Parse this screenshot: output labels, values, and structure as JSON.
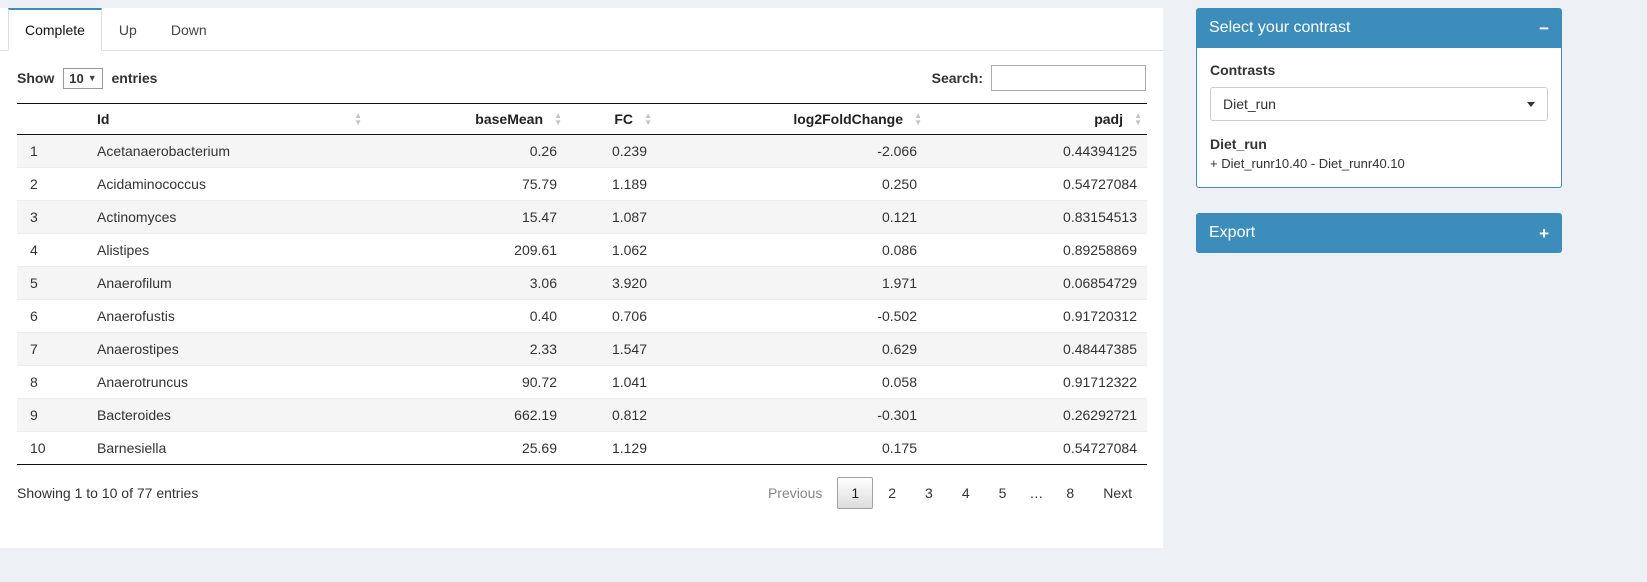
{
  "colors": {
    "primary": "#3c8dbc"
  },
  "tabs": [
    {
      "label": "Complete",
      "active": true
    },
    {
      "label": "Up",
      "active": false
    },
    {
      "label": "Down",
      "active": false
    }
  ],
  "table_controls": {
    "show_label": "Show",
    "length_value": "10",
    "entries_label": "entries",
    "search_label": "Search:",
    "search_value": ""
  },
  "table": {
    "columns": [
      "Id",
      "baseMean",
      "FC",
      "log2FoldChange",
      "padj"
    ],
    "rows": [
      {
        "index": "1",
        "id": "Acetanaerobacterium",
        "baseMean": "0.26",
        "fc": "0.239",
        "log2fc": "-2.066",
        "padj": "0.44394125"
      },
      {
        "index": "2",
        "id": "Acidaminococcus",
        "baseMean": "75.79",
        "fc": "1.189",
        "log2fc": "0.250",
        "padj": "0.54727084"
      },
      {
        "index": "3",
        "id": "Actinomyces",
        "baseMean": "15.47",
        "fc": "1.087",
        "log2fc": "0.121",
        "padj": "0.83154513"
      },
      {
        "index": "4",
        "id": "Alistipes",
        "baseMean": "209.61",
        "fc": "1.062",
        "log2fc": "0.086",
        "padj": "0.89258869"
      },
      {
        "index": "5",
        "id": "Anaerofilum",
        "baseMean": "3.06",
        "fc": "3.920",
        "log2fc": "1.971",
        "padj": "0.06854729"
      },
      {
        "index": "6",
        "id": "Anaerofustis",
        "baseMean": "0.40",
        "fc": "0.706",
        "log2fc": "-0.502",
        "padj": "0.91720312"
      },
      {
        "index": "7",
        "id": "Anaerostipes",
        "baseMean": "2.33",
        "fc": "1.547",
        "log2fc": "0.629",
        "padj": "0.48447385"
      },
      {
        "index": "8",
        "id": "Anaerotruncus",
        "baseMean": "90.72",
        "fc": "1.041",
        "log2fc": "0.058",
        "padj": "0.91712322"
      },
      {
        "index": "9",
        "id": "Bacteroides",
        "baseMean": "662.19",
        "fc": "0.812",
        "log2fc": "-0.301",
        "padj": "0.26292721"
      },
      {
        "index": "10",
        "id": "Barnesiella",
        "baseMean": "25.69",
        "fc": "1.129",
        "log2fc": "0.175",
        "padj": "0.54727084"
      }
    ]
  },
  "table_footer": {
    "info": "Showing 1 to 10 of 77 entries",
    "current_page": "1",
    "pagination": [
      "Previous",
      "1",
      "2",
      "3",
      "4",
      "5",
      "…",
      "8",
      "Next"
    ]
  },
  "contrast_box": {
    "title": "Select your contrast",
    "collapse_icon": "−",
    "contrasts_label": "Contrasts",
    "selected_contrast": "Diet_run",
    "contrast_name": "Diet_run",
    "contrast_formula": "+ Diet_runr10.40 - Diet_runr40.10"
  },
  "export_box": {
    "title": "Export",
    "collapse_icon": "+"
  }
}
